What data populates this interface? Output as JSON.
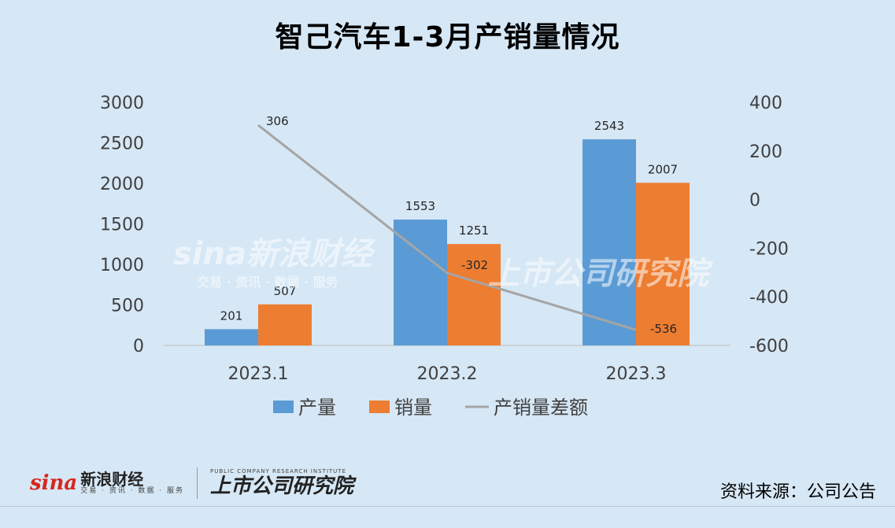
{
  "chart_data": {
    "type": "bar",
    "title": "智己汽车1-3月产销量情况",
    "categories": [
      "2023.1",
      "2023.2",
      "2023.3"
    ],
    "series": [
      {
        "name": "产量",
        "type": "bar",
        "axis": "left",
        "color": "#5b9bd5",
        "values": [
          201,
          1553,
          2543
        ]
      },
      {
        "name": "销量",
        "type": "bar",
        "axis": "left",
        "color": "#ed7d31",
        "values": [
          507,
          1251,
          2007
        ]
      },
      {
        "name": "产销量差额",
        "type": "line",
        "axis": "right",
        "color": "#a5a5a5",
        "values": [
          306,
          -302,
          -536
        ]
      }
    ],
    "ylim_left": [
      0,
      3000
    ],
    "yticks_left": [
      0,
      500,
      1000,
      1500,
      2000,
      2500,
      3000
    ],
    "ylim_right": [
      -600,
      400
    ],
    "yticks_right": [
      -600,
      -400,
      -200,
      0,
      200,
      400
    ],
    "legend": "bottom",
    "grid": false
  },
  "watermark": {
    "brand": "sina新浪财经",
    "tagline": "交易 · 资讯 · 数据 · 服务",
    "partner": "上市公司研究院"
  },
  "footer": {
    "sina_logo": "sina",
    "sina_name": "新浪财经",
    "sina_tagline": "交易 · 资讯 · 数据 · 服务",
    "institute_name": "上市公司研究院",
    "institute_en": "PUBLIC COMPANY RESEARCH INSTITUTE",
    "source": "资料来源：公司公告"
  }
}
